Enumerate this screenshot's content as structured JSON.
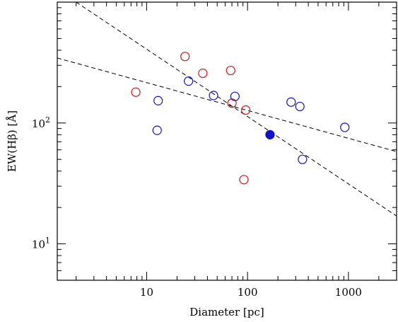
{
  "chart_data": {
    "type": "scatter",
    "xlabel": "Diameter [pc]",
    "ylabel": "EW(Hβ) [Å]",
    "x_scale": "log",
    "y_scale": "log",
    "xlim": [
      1.3,
      3000
    ],
    "ylim": [
      5,
      1000
    ],
    "x_ticks": [
      {
        "value": 10,
        "label": "10"
      },
      {
        "value": 100,
        "label": "100"
      },
      {
        "value": 1000,
        "label": "1000"
      }
    ],
    "y_ticks": [
      {
        "value": 10,
        "base": "10",
        "exp": "1"
      },
      {
        "value": 100,
        "base": "10",
        "exp": "2"
      }
    ],
    "series": [
      {
        "color": "#dd1111",
        "marker": "open-circle",
        "points": [
          {
            "x": 7.8,
            "y": 180
          },
          {
            "x": 24,
            "y": 355
          },
          {
            "x": 36,
            "y": 258
          },
          {
            "x": 68,
            "y": 272
          },
          {
            "x": 70,
            "y": 146
          },
          {
            "x": 96,
            "y": 128
          },
          {
            "x": 92,
            "y": 34
          }
        ]
      },
      {
        "color": "#1111cc",
        "marker": "open-circle",
        "points": [
          {
            "x": 13,
            "y": 153
          },
          {
            "x": 12.7,
            "y": 87
          },
          {
            "x": 26,
            "y": 222
          },
          {
            "x": 46,
            "y": 169
          },
          {
            "x": 75,
            "y": 166
          },
          {
            "x": 270,
            "y": 149
          },
          {
            "x": 330,
            "y": 137
          },
          {
            "x": 350,
            "y": 50
          },
          {
            "x": 920,
            "y": 92
          }
        ]
      },
      {
        "color": "#1111cc",
        "marker": "filled-circle",
        "points": [
          {
            "x": 167,
            "y": 80
          }
        ]
      }
    ],
    "fit_lines": [
      {
        "style": "dashed",
        "from": {
          "x": 1.3,
          "y": 345
        },
        "to": {
          "x": 3000,
          "y": 58
        }
      },
      {
        "style": "dashed",
        "from": {
          "x": 2.0,
          "y": 1000
        },
        "to": {
          "x": 3000,
          "y": 17
        }
      }
    ]
  }
}
